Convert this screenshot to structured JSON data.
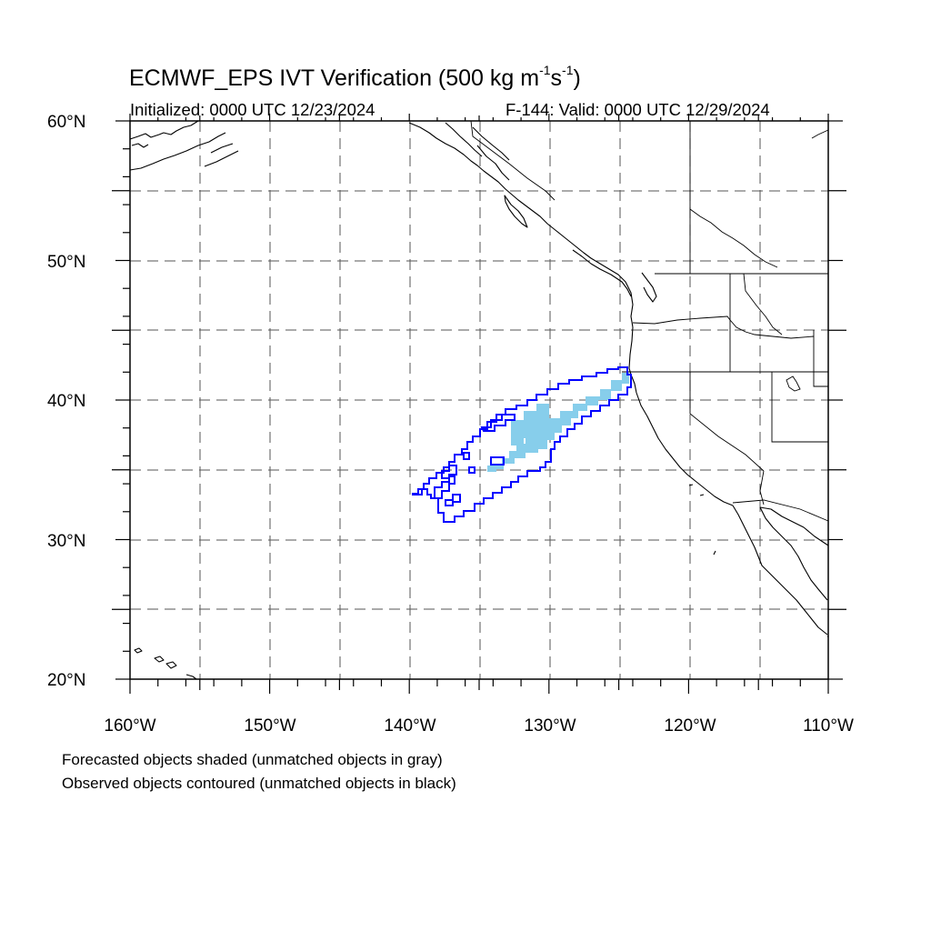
{
  "title": {
    "main": "ECMWF_EPS IVT Verification (500 kg m",
    "exp1": "-1",
    "mid": "s",
    "exp2": "-1",
    "end": ")"
  },
  "initialized": "Initialized: 0000 UTC 12/23/2024",
  "valid": "F-144: Valid: 0000 UTC 12/29/2024",
  "notes": {
    "forecast": "Forecasted objects shaded (unmatched objects in gray)",
    "observed": "Observed objects contoured (unmatched objects in black)"
  },
  "map": {
    "lon_range": [
      -160,
      -110
    ],
    "lat_range": [
      20,
      60
    ],
    "grid_interval_deg": 5,
    "grid_style": "dashed",
    "lat_labels": [
      "60°N",
      "50°N",
      "40°N",
      "30°N",
      "20°N"
    ],
    "lon_labels": [
      "160°W",
      "150°W",
      "140°W",
      "130°W",
      "120°W",
      "110°W"
    ]
  },
  "colors": {
    "forecast_matched": "#87ceeb",
    "observed_matched": "#0000ff",
    "coastline": "#000000"
  }
}
